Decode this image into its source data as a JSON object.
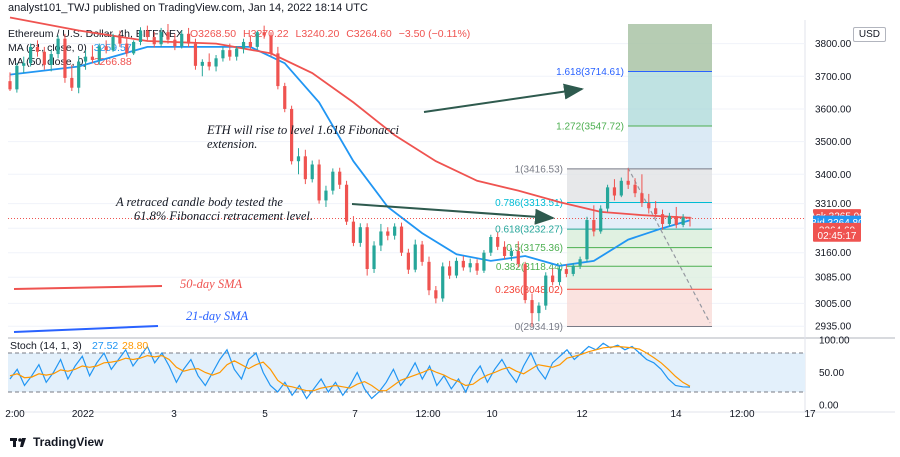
{
  "header": {
    "publisher_line": "analyst101_TWJ published on TradingView.com, Jan 14, 2022 18:14 UTC",
    "symbol": "Ethereum / U.S. Dollar, 4h, BITFINEX",
    "open": "O3268.50",
    "high": "H3270.22",
    "low": "L3240.20",
    "close": "C3264.60",
    "change": "−3.50 (−0.11%)"
  },
  "indicators": [
    {
      "label": "MA (21, close, 0)",
      "value": "3259.57",
      "color": "#2196f3"
    },
    {
      "label": "MA (50, close, 0)",
      "value": "3266.88",
      "color": "#ef5350"
    }
  ],
  "currency": "USD",
  "price_badges": [
    {
      "label": "Ask",
      "value": "3265.00",
      "color": "#ef5350"
    },
    {
      "label": "Bid",
      "value": "3264.80",
      "color": "#2196f3"
    },
    {
      "label": "",
      "value": "3264.60",
      "color": "#ef5350"
    },
    {
      "label": "",
      "value": "02:45:17",
      "color": "#ef5350"
    }
  ],
  "annotations": {
    "eth_rise": [
      "ETH will rise to level 1.618 Fibonacci",
      "extension."
    ],
    "retraced": [
      "A retraced candle body tested the",
      "61.8% Fibonacci retracement level."
    ],
    "sma50": "50-day SMA",
    "sma21": "21-day SMA"
  },
  "footer": {
    "brand": "TradingView"
  },
  "chart_data": [
    {
      "type": "candlestick",
      "title": "Ethereum / U.S. Dollar, 4h, BITFINEX",
      "y_axis_ticks": [
        3800,
        3700,
        3600,
        3500,
        3400,
        3310,
        3235,
        3160,
        3085,
        3005,
        2935
      ],
      "y_tick_labels": [
        "3800.00",
        "3700.00",
        "3600.00",
        "3500.00",
        "3400.00",
        "3310.00",
        "3235.00",
        "3160.00",
        "3085.00",
        "3005.00",
        "2935.00"
      ],
      "x_tick_labels": [
        "2:00",
        "2022",
        "3",
        "5",
        "7",
        "12:00",
        "10",
        "12",
        "14",
        "12:00",
        "17"
      ],
      "candles": [
        [
          3685,
          3712,
          3655,
          3660
        ],
        [
          3660,
          3740,
          3650,
          3732
        ],
        [
          3732,
          3760,
          3710,
          3740
        ],
        [
          3740,
          3800,
          3730,
          3790
        ],
        [
          3790,
          3810,
          3760,
          3775
        ],
        [
          3775,
          3790,
          3720,
          3735
        ],
        [
          3735,
          3780,
          3715,
          3768
        ],
        [
          3768,
          3825,
          3755,
          3815
        ],
        [
          3815,
          3830,
          3680,
          3695
        ],
        [
          3695,
          3735,
          3655,
          3665
        ],
        [
          3665,
          3762,
          3648,
          3745
        ],
        [
          3745,
          3780,
          3720,
          3760
        ],
        [
          3760,
          3795,
          3740,
          3750
        ],
        [
          3750,
          3800,
          3735,
          3792
        ],
        [
          3792,
          3810,
          3770,
          3780
        ],
        [
          3780,
          3830,
          3775,
          3820
        ],
        [
          3820,
          3840,
          3790,
          3800
        ],
        [
          3800,
          3815,
          3760,
          3770
        ],
        [
          3770,
          3810,
          3765,
          3805
        ],
        [
          3805,
          3850,
          3795,
          3840
        ],
        [
          3840,
          3855,
          3810,
          3820
        ],
        [
          3820,
          3836,
          3788,
          3798
        ],
        [
          3798,
          3848,
          3790,
          3835
        ],
        [
          3835,
          3860,
          3800,
          3812
        ],
        [
          3812,
          3830,
          3780,
          3792
        ],
        [
          3792,
          3840,
          3785,
          3830
        ],
        [
          3830,
          3848,
          3790,
          3800
        ],
        [
          3800,
          3815,
          3720,
          3732
        ],
        [
          3732,
          3752,
          3700,
          3744
        ],
        [
          3744,
          3770,
          3718,
          3730
        ],
        [
          3730,
          3765,
          3715,
          3755
        ],
        [
          3755,
          3790,
          3745,
          3780
        ],
        [
          3780,
          3800,
          3748,
          3760
        ],
        [
          3760,
          3792,
          3748,
          3785
        ],
        [
          3785,
          3815,
          3770,
          3805
        ],
        [
          3805,
          3825,
          3780,
          3790
        ],
        [
          3790,
          3840,
          3780,
          3835
        ],
        [
          3835,
          3855,
          3815,
          3825
        ],
        [
          3825,
          3835,
          3760,
          3770
        ],
        [
          3770,
          3790,
          3660,
          3670
        ],
        [
          3670,
          3680,
          3590,
          3600
        ],
        [
          3600,
          3610,
          3430,
          3440
        ],
        [
          3440,
          3480,
          3400,
          3455
        ],
        [
          3455,
          3475,
          3370,
          3385
        ],
        [
          3385,
          3442,
          3375,
          3430
        ],
        [
          3430,
          3445,
          3310,
          3320
        ],
        [
          3320,
          3365,
          3300,
          3350
        ],
        [
          3350,
          3418,
          3338,
          3408
        ],
        [
          3408,
          3420,
          3355,
          3368
        ],
        [
          3368,
          3380,
          3245,
          3255
        ],
        [
          3255,
          3272,
          3180,
          3190
        ],
        [
          3190,
          3250,
          3178,
          3238
        ],
        [
          3238,
          3250,
          3090,
          3110
        ],
        [
          3110,
          3195,
          3098,
          3182
        ],
        [
          3182,
          3248,
          3165,
          3225
        ],
        [
          3225,
          3238,
          3198,
          3212
        ],
        [
          3212,
          3250,
          3200,
          3240
        ],
        [
          3240,
          3252,
          3150,
          3160
        ],
        [
          3160,
          3172,
          3095,
          3108
        ],
        [
          3108,
          3200,
          3100,
          3185
        ],
        [
          3185,
          3196,
          3120,
          3132
        ],
        [
          3132,
          3148,
          3030,
          3045
        ],
        [
          3045,
          3058,
          3005,
          3020
        ],
        [
          3020,
          3130,
          3010,
          3118
        ],
        [
          3118,
          3135,
          3080,
          3090
        ],
        [
          3090,
          3145,
          3082,
          3135
        ],
        [
          3135,
          3150,
          3105,
          3115
        ],
        [
          3115,
          3142,
          3100,
          3128
        ],
        [
          3128,
          3140,
          3092,
          3105
        ],
        [
          3105,
          3168,
          3098,
          3160
        ],
        [
          3160,
          3215,
          3150,
          3208
        ],
        [
          3208,
          3222,
          3168,
          3178
        ],
        [
          3178,
          3195,
          3140,
          3150
        ],
        [
          3150,
          3175,
          3135,
          3165
        ],
        [
          3165,
          3195,
          3115,
          3125
        ],
        [
          3125,
          3132,
          3005,
          3015
        ],
        [
          3015,
          3035,
          2934,
          2975
        ],
        [
          2975,
          3008,
          2950,
          2998
        ],
        [
          2998,
          3100,
          2985,
          3090
        ],
        [
          3090,
          3112,
          3060,
          3070
        ],
        [
          3070,
          3120,
          3060,
          3110
        ],
        [
          3110,
          3125,
          3085,
          3095
        ],
        [
          3095,
          3128,
          3088,
          3120
        ],
        [
          3120,
          3148,
          3110,
          3140
        ],
        [
          3140,
          3270,
          3132,
          3260
        ],
        [
          3260,
          3305,
          3210,
          3225
        ],
        [
          3225,
          3305,
          3218,
          3295
        ],
        [
          3295,
          3368,
          3285,
          3360
        ],
        [
          3360,
          3385,
          3320,
          3335
        ],
        [
          3335,
          3390,
          3330,
          3380
        ],
        [
          3380,
          3418,
          3355,
          3368
        ],
        [
          3368,
          3388,
          3330,
          3342
        ],
        [
          3342,
          3400,
          3300,
          3312
        ],
        [
          3312,
          3340,
          3280,
          3296
        ],
        [
          3296,
          3318,
          3268,
          3278
        ],
        [
          3278,
          3292,
          3230,
          3248
        ],
        [
          3248,
          3282,
          3240,
          3272
        ],
        [
          3272,
          3300,
          3235,
          3245
        ],
        [
          3245,
          3278,
          3238,
          3268
        ],
        [
          3268,
          3270,
          3240,
          3265
        ]
      ],
      "moving_averages": [
        {
          "name": "MA (21, close, 0)",
          "color": "#2196f3",
          "values": [
            [
              0,
              3705
            ],
            [
              10,
              3730
            ],
            [
              20,
              3790
            ],
            [
              30,
              3790
            ],
            [
              35,
              3790
            ],
            [
              40,
              3740
            ],
            [
              45,
              3620
            ],
            [
              50,
              3440
            ],
            [
              55,
              3300
            ],
            [
              60,
              3220
            ],
            [
              65,
              3155
            ],
            [
              70,
              3135
            ],
            [
              75,
              3150
            ],
            [
              80,
              3120
            ],
            [
              85,
              3135
            ],
            [
              90,
              3200
            ],
            [
              95,
              3235
            ],
            [
              99,
              3259.57
            ]
          ]
        },
        {
          "name": "MA (50, close, 0)",
          "color": "#ef5350",
          "values": [
            [
              0,
              3880
            ],
            [
              10,
              3840
            ],
            [
              20,
              3808
            ],
            [
              30,
              3800
            ],
            [
              38,
              3770
            ],
            [
              44,
              3710
            ],
            [
              50,
              3620
            ],
            [
              56,
              3520
            ],
            [
              62,
              3440
            ],
            [
              68,
              3380
            ],
            [
              74,
              3350
            ],
            [
              80,
              3315
            ],
            [
              86,
              3285
            ],
            [
              92,
              3275
            ],
            [
              99,
              3266.88
            ]
          ]
        }
      ],
      "fibonacci": [
        {
          "level": "1.618",
          "price": 3714.61,
          "label": "1.618(3714.61)"
        },
        {
          "level": "1.272",
          "price": 3547.72,
          "label": "1.272(3547.72)"
        },
        {
          "level": "1",
          "price": 3416.53,
          "label": "1(3416.53)"
        },
        {
          "level": "0.786",
          "price": 3313.51,
          "label": "0.786(3313.51)"
        },
        {
          "level": "0.618",
          "price": 3232.27,
          "label": "0.618(3232.27)"
        },
        {
          "level": "0.5",
          "price": 3175.36,
          "label": "0.5(3175.36)"
        },
        {
          "level": "0.382",
          "price": 3118.44,
          "label": "0.382(3118.44)"
        },
        {
          "level": "0.236",
          "price": 3048.02,
          "label": "0.236(3048.02)"
        },
        {
          "level": "0",
          "price": 2934.19,
          "label": "0(2934.19)"
        }
      ],
      "last_price": 3264.6
    },
    {
      "type": "line",
      "title": "Stoch (14, 1, 3)",
      "legend": [
        {
          "label": "Stoch (14, 1, 3)"
        },
        {
          "value": "27.52",
          "color": "#2196f3"
        },
        {
          "value": "28.80",
          "color": "#ff9800"
        }
      ],
      "ylim": [
        0,
        100
      ],
      "y_tick_labels": [
        "100.00",
        "50.00",
        "0.00"
      ],
      "bands": [
        80,
        20
      ],
      "series": [
        {
          "name": "%K",
          "color": "#2196f3",
          "values": [
            40,
            55,
            30,
            45,
            62,
            35,
            50,
            70,
            40,
            60,
            75,
            45,
            65,
            80,
            55,
            70,
            85,
            60,
            75,
            90,
            65,
            80,
            60,
            35,
            55,
            70,
            45,
            30,
            50,
            70,
            85,
            55,
            40,
            70,
            80,
            50,
            30,
            20,
            35,
            15,
            30,
            10,
            25,
            40,
            20,
            35,
            15,
            30,
            50,
            25,
            10,
            20,
            35,
            55,
            30,
            45,
            65,
            40,
            60,
            30,
            45,
            25,
            40,
            20,
            45,
            60,
            35,
            55,
            70,
            50,
            35,
            60,
            80,
            55,
            40,
            65,
            75,
            85,
            70,
            80,
            90,
            85,
            95,
            88,
            92,
            85,
            90,
            80,
            70,
            65,
            55,
            40,
            30,
            28,
            27.52
          ]
        },
        {
          "name": "%D",
          "color": "#ff9800",
          "values": [
            45,
            48,
            42,
            43,
            48,
            46,
            48,
            54,
            52,
            55,
            60,
            58,
            60,
            65,
            66,
            68,
            72,
            70,
            72,
            76,
            74,
            76,
            70,
            58,
            52,
            55,
            56,
            50,
            46,
            50,
            62,
            68,
            62,
            56,
            62,
            66,
            55,
            38,
            30,
            28,
            25,
            22,
            22,
            26,
            28,
            30,
            28,
            26,
            32,
            36,
            30,
            22,
            22,
            30,
            38,
            42,
            46,
            50,
            55,
            50,
            46,
            40,
            36,
            30,
            32,
            40,
            46,
            50,
            55,
            58,
            52,
            48,
            55,
            62,
            60,
            58,
            62,
            72,
            75,
            78,
            82,
            85,
            88,
            89,
            90,
            89,
            88,
            86,
            80,
            73,
            65,
            55,
            44,
            35,
            28.8
          ]
        }
      ]
    }
  ]
}
